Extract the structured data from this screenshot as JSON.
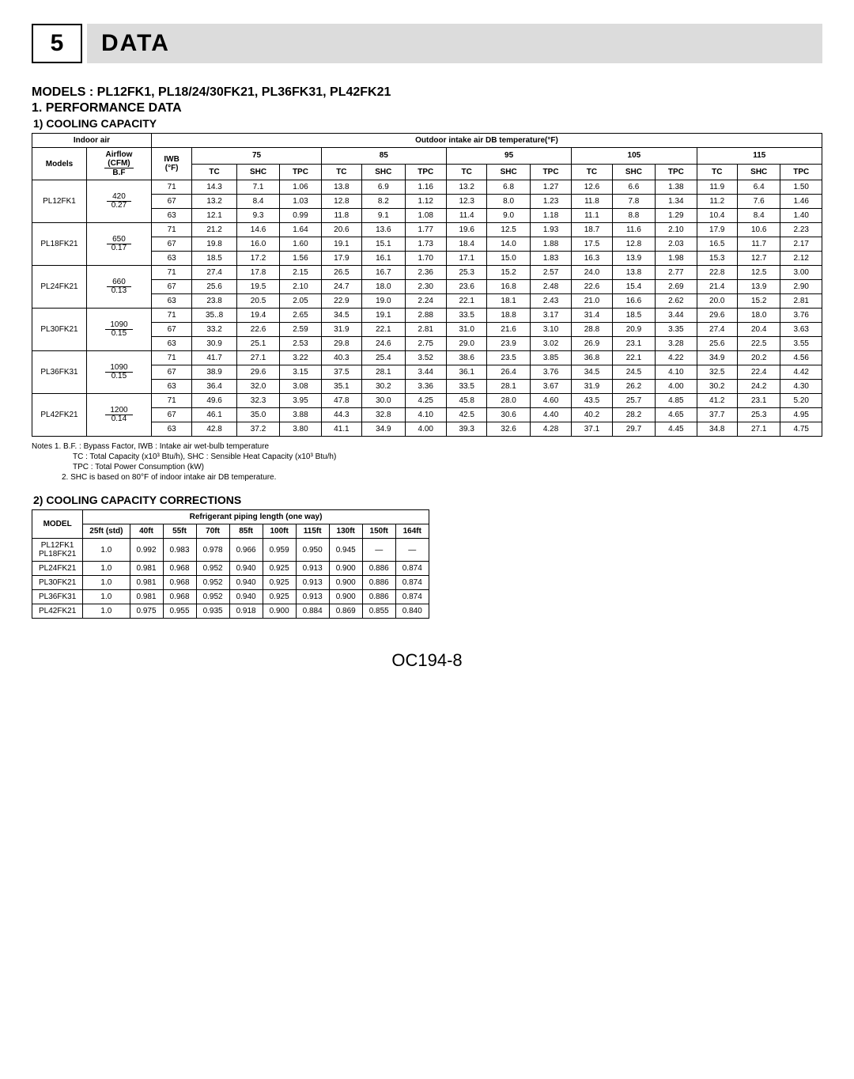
{
  "section": {
    "num": "5",
    "title": "DATA"
  },
  "headings": {
    "models": "MODELS : PL12FK1, PL18/24/30FK21, PL36FK31, PL42FK21",
    "perf": "1. PERFORMANCE DATA",
    "cooling": "1) COOLING CAPACITY",
    "corrections": "2) COOLING CAPACITY CORRECTIONS"
  },
  "capacity": {
    "header_top1": "Indoor air",
    "header_top2": "Outdoor intake air DB temperature(°F)",
    "models_label": "Models",
    "airflow_label_top": "Airflow",
    "airflow_label_mid": "(CFM)",
    "airflow_label_bot": "B.F",
    "iwb_top": "IWB",
    "iwb_bot": "(°F)",
    "temps": [
      "75",
      "85",
      "95",
      "105",
      "115"
    ],
    "subheads": [
      "TC",
      "SHC",
      "TPC"
    ],
    "rows": [
      {
        "model": "PL12FK1",
        "airflow_top": "420",
        "airflow_bot": "0.27",
        "iwbs": [
          {
            "iwb": "71",
            "v": [
              "14.3",
              "7.1",
              "1.06",
              "13.8",
              "6.9",
              "1.16",
              "13.2",
              "6.8",
              "1.27",
              "12.6",
              "6.6",
              "1.38",
              "11.9",
              "6.4",
              "1.50"
            ]
          },
          {
            "iwb": "67",
            "v": [
              "13.2",
              "8.4",
              "1.03",
              "12.8",
              "8.2",
              "1.12",
              "12.3",
              "8.0",
              "1.23",
              "11.8",
              "7.8",
              "1.34",
              "11.2",
              "7.6",
              "1.46"
            ]
          },
          {
            "iwb": "63",
            "v": [
              "12.1",
              "9.3",
              "0.99",
              "11.8",
              "9.1",
              "1.08",
              "11.4",
              "9.0",
              "1.18",
              "11.1",
              "8.8",
              "1.29",
              "10.4",
              "8.4",
              "1.40"
            ]
          }
        ]
      },
      {
        "model": "PL18FK21",
        "airflow_top": "650",
        "airflow_bot": "0.17",
        "iwbs": [
          {
            "iwb": "71",
            "v": [
              "21.2",
              "14.6",
              "1.64",
              "20.6",
              "13.6",
              "1.77",
              "19.6",
              "12.5",
              "1.93",
              "18.7",
              "11.6",
              "2.10",
              "17.9",
              "10.6",
              "2.23"
            ]
          },
          {
            "iwb": "67",
            "v": [
              "19.8",
              "16.0",
              "1.60",
              "19.1",
              "15.1",
              "1.73",
              "18.4",
              "14.0",
              "1.88",
              "17.5",
              "12.8",
              "2.03",
              "16.5",
              "11.7",
              "2.17"
            ]
          },
          {
            "iwb": "63",
            "v": [
              "18.5",
              "17.2",
              "1.56",
              "17.9",
              "16.1",
              "1.70",
              "17.1",
              "15.0",
              "1.83",
              "16.3",
              "13.9",
              "1.98",
              "15.3",
              "12.7",
              "2.12"
            ]
          }
        ]
      },
      {
        "model": "PL24FK21",
        "airflow_top": "660",
        "airflow_bot": "0.13",
        "iwbs": [
          {
            "iwb": "71",
            "v": [
              "27.4",
              "17.8",
              "2.15",
              "26.5",
              "16.7",
              "2.36",
              "25.3",
              "15.2",
              "2.57",
              "24.0",
              "13.8",
              "2.77",
              "22.8",
              "12.5",
              "3.00"
            ]
          },
          {
            "iwb": "67",
            "v": [
              "25.6",
              "19.5",
              "2.10",
              "24.7",
              "18.0",
              "2.30",
              "23.6",
              "16.8",
              "2.48",
              "22.6",
              "15.4",
              "2.69",
              "21.4",
              "13.9",
              "2.90"
            ]
          },
          {
            "iwb": "63",
            "v": [
              "23.8",
              "20.5",
              "2.05",
              "22.9",
              "19.0",
              "2.24",
              "22.1",
              "18.1",
              "2.43",
              "21.0",
              "16.6",
              "2.62",
              "20.0",
              "15.2",
              "2.81"
            ]
          }
        ]
      },
      {
        "model": "PL30FK21",
        "airflow_top": "1090",
        "airflow_bot": "0.15",
        "iwbs": [
          {
            "iwb": "71",
            "v": [
              "35..8",
              "19.4",
              "2.65",
              "34.5",
              "19.1",
              "2.88",
              "33.5",
              "18.8",
              "3.17",
              "31.4",
              "18.5",
              "3.44",
              "29.6",
              "18.0",
              "3.76"
            ]
          },
          {
            "iwb": "67",
            "v": [
              "33.2",
              "22.6",
              "2.59",
              "31.9",
              "22.1",
              "2.81",
              "31.0",
              "21.6",
              "3.10",
              "28.8",
              "20.9",
              "3.35",
              "27.4",
              "20.4",
              "3.63"
            ]
          },
          {
            "iwb": "63",
            "v": [
              "30.9",
              "25.1",
              "2.53",
              "29.8",
              "24.6",
              "2.75",
              "29.0",
              "23.9",
              "3.02",
              "26.9",
              "23.1",
              "3.28",
              "25.6",
              "22.5",
              "3.55"
            ]
          }
        ]
      },
      {
        "model": "PL36FK31",
        "airflow_top": "1090",
        "airflow_bot": "0.15",
        "iwbs": [
          {
            "iwb": "71",
            "v": [
              "41.7",
              "27.1",
              "3.22",
              "40.3",
              "25.4",
              "3.52",
              "38.6",
              "23.5",
              "3.85",
              "36.8",
              "22.1",
              "4.22",
              "34.9",
              "20.2",
              "4.56"
            ]
          },
          {
            "iwb": "67",
            "v": [
              "38.9",
              "29.6",
              "3.15",
              "37.5",
              "28.1",
              "3.44",
              "36.1",
              "26.4",
              "3.76",
              "34.5",
              "24.5",
              "4.10",
              "32.5",
              "22.4",
              "4.42"
            ]
          },
          {
            "iwb": "63",
            "v": [
              "36.4",
              "32.0",
              "3.08",
              "35.1",
              "30.2",
              "3.36",
              "33.5",
              "28.1",
              "3.67",
              "31.9",
              "26.2",
              "4.00",
              "30.2",
              "24.2",
              "4.30"
            ]
          }
        ]
      },
      {
        "model": "PL42FK21",
        "airflow_top": "1200",
        "airflow_bot": "0.14",
        "iwbs": [
          {
            "iwb": "71",
            "v": [
              "49.6",
              "32.3",
              "3.95",
              "47.8",
              "30.0",
              "4.25",
              "45.8",
              "28.0",
              "4.60",
              "43.5",
              "25.7",
              "4.85",
              "41.2",
              "23.1",
              "5.20"
            ]
          },
          {
            "iwb": "67",
            "v": [
              "46.1",
              "35.0",
              "3.88",
              "44.3",
              "32.8",
              "4.10",
              "42.5",
              "30.6",
              "4.40",
              "40.2",
              "28.2",
              "4.65",
              "37.7",
              "25.3",
              "4.95"
            ]
          },
          {
            "iwb": "63",
            "v": [
              "42.8",
              "37.2",
              "3.80",
              "41.1",
              "34.9",
              "4.00",
              "39.3",
              "32.6",
              "4.28",
              "37.1",
              "29.7",
              "4.45",
              "34.8",
              "27.1",
              "4.75"
            ]
          }
        ]
      }
    ]
  },
  "notes": {
    "l1": "Notes 1. B.F. : Bypass Factor, IWB : Intake air wet-bulb temperature",
    "l2": "TC : Total Capacity (x10³ Btu/h), SHC : Sensible Heat Capacity (x10³ Btu/h)",
    "l3": "TPC : Total Power Consumption (kW)",
    "l4": "2. SHC is based on 80°F of indoor intake air DB temperature."
  },
  "corrections": {
    "header": "Refrigerant piping length (one way)",
    "model_label": "MODEL",
    "cols": [
      "25ft (std)",
      "40ft",
      "55ft",
      "70ft",
      "85ft",
      "100ft",
      "115ft",
      "130ft",
      "150ft",
      "164ft"
    ],
    "rows": [
      {
        "model": "PL12FK1\nPL18FK21",
        "v": [
          "1.0",
          "0.992",
          "0.983",
          "0.978",
          "0.966",
          "0.959",
          "0.950",
          "0.945",
          "—",
          "—"
        ]
      },
      {
        "model": "PL24FK21",
        "v": [
          "1.0",
          "0.981",
          "0.968",
          "0.952",
          "0.940",
          "0.925",
          "0.913",
          "0.900",
          "0.886",
          "0.874"
        ]
      },
      {
        "model": "PL30FK21",
        "v": [
          "1.0",
          "0.981",
          "0.968",
          "0.952",
          "0.940",
          "0.925",
          "0.913",
          "0.900",
          "0.886",
          "0.874"
        ]
      },
      {
        "model": "PL36FK31",
        "v": [
          "1.0",
          "0.981",
          "0.968",
          "0.952",
          "0.940",
          "0.925",
          "0.913",
          "0.900",
          "0.886",
          "0.874"
        ]
      },
      {
        "model": "PL42FK21",
        "v": [
          "1.0",
          "0.975",
          "0.955",
          "0.935",
          "0.918",
          "0.900",
          "0.884",
          "0.869",
          "0.855",
          "0.840"
        ]
      }
    ]
  },
  "page_number": "OC194-8"
}
